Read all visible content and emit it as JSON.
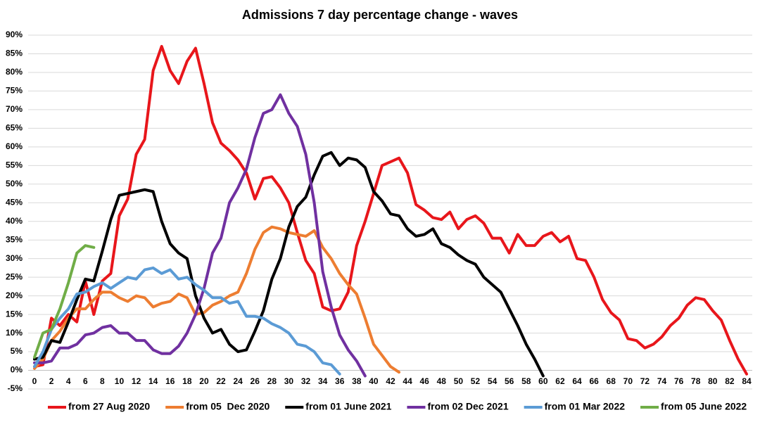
{
  "chart_data": {
    "type": "line",
    "title": "Admissions 7 day percentage change - waves",
    "x": [
      0,
      1,
      2,
      3,
      4,
      5,
      6,
      7,
      8,
      9,
      10,
      11,
      12,
      13,
      14,
      15,
      16,
      17,
      18,
      19,
      20,
      21,
      22,
      23,
      24,
      25,
      26,
      27,
      28,
      29,
      30,
      31,
      32,
      33,
      34,
      35,
      36,
      37,
      38,
      39,
      40,
      41,
      42,
      43,
      44,
      45,
      46,
      47,
      48,
      49,
      50,
      51,
      52,
      53,
      54,
      55,
      56,
      57,
      58,
      59,
      60,
      61,
      62,
      63,
      64,
      65,
      66,
      67,
      68,
      69,
      70,
      71,
      72,
      73,
      74,
      75,
      76,
      77,
      78,
      79,
      80,
      81,
      82,
      83,
      84
    ],
    "xlim": [
      0,
      84
    ],
    "xticks": [
      0,
      2,
      4,
      6,
      8,
      10,
      12,
      14,
      16,
      18,
      20,
      22,
      24,
      26,
      28,
      30,
      32,
      34,
      36,
      38,
      40,
      42,
      44,
      46,
      48,
      50,
      52,
      54,
      56,
      58,
      60,
      62,
      64,
      66,
      68,
      70,
      72,
      74,
      76,
      78,
      80,
      82,
      84
    ],
    "ylim": [
      -5,
      90
    ],
    "yticks": [
      {
        "value": -5,
        "label": "-5%"
      },
      {
        "value": 0,
        "label": "0%"
      },
      {
        "value": 5,
        "label": "5%"
      },
      {
        "value": 10,
        "label": "10%"
      },
      {
        "value": 15,
        "label": "15%"
      },
      {
        "value": 20,
        "label": "20%"
      },
      {
        "value": 25,
        "label": "25%"
      },
      {
        "value": 30,
        "label": "30%"
      },
      {
        "value": 35,
        "label": "35%"
      },
      {
        "value": 40,
        "label": "40%"
      },
      {
        "value": 45,
        "label": "45%"
      },
      {
        "value": 50,
        "label": "50%"
      },
      {
        "value": 55,
        "label": "55%"
      },
      {
        "value": 60,
        "label": "60%"
      },
      {
        "value": 65,
        "label": "65%"
      },
      {
        "value": 70,
        "label": "70%"
      },
      {
        "value": 75,
        "label": "75%"
      },
      {
        "value": 80,
        "label": "80%"
      },
      {
        "value": 85,
        "label": "85%"
      },
      {
        "value": 90,
        "label": "90%"
      }
    ],
    "grid": true,
    "legend": "bottom",
    "series": [
      {
        "name": "from 27 Aug 2020",
        "color": "#e8161b",
        "values": [
          1,
          1.5,
          14,
          12,
          15,
          13,
          24,
          15,
          24,
          26,
          41.5,
          46,
          58,
          62,
          80.5,
          87,
          80.5,
          77,
          83,
          86.5,
          77,
          66.5,
          61,
          59,
          56.5,
          53,
          46,
          51.5,
          52,
          49,
          45,
          37,
          29.5,
          26,
          17,
          16,
          16.5,
          21,
          33.5,
          40,
          47.5,
          55,
          56,
          57,
          53,
          44.5,
          43,
          41,
          40.5,
          42.5,
          38,
          40.5,
          41.5,
          39.5,
          35.5,
          35.5,
          31.5,
          36.5,
          33.5,
          33.5,
          36,
          37,
          34.5,
          36,
          30,
          29.5,
          25,
          19,
          15.5,
          13.5,
          8.5,
          8,
          6,
          7,
          9,
          12,
          14,
          17.5,
          19.5,
          19,
          16,
          13.5,
          8,
          3,
          -1
        ]
      },
      {
        "name": "from 05  Dec 2020",
        "color": "#ed7d31",
        "values": [
          0.5,
          3,
          8,
          10.5,
          14,
          16.5,
          16.5,
          19,
          21,
          21,
          19.5,
          18.5,
          20,
          19.5,
          17,
          18,
          18.5,
          20.5,
          19.5,
          15,
          15.5,
          17.5,
          18.5,
          20,
          21,
          26,
          32.5,
          37,
          38.5,
          38,
          37,
          36.5,
          36,
          37.5,
          33,
          30,
          26,
          23,
          20.5,
          14,
          7,
          4,
          1,
          -0.5,
          null,
          null,
          null,
          null,
          null,
          null,
          null,
          null,
          null,
          null,
          null,
          null,
          null,
          null,
          null,
          null,
          null,
          null,
          null,
          null,
          null,
          null,
          null,
          null,
          null,
          null,
          null,
          null,
          null,
          null,
          null,
          null,
          null,
          null,
          null,
          null,
          null,
          null,
          null,
          null,
          null
        ]
      },
      {
        "name": "from 01 June 2021",
        "color": "#000000",
        "values": [
          3,
          3.5,
          8,
          7.5,
          13,
          19,
          24.5,
          24,
          32,
          40.5,
          47,
          47.5,
          48,
          48.5,
          48,
          40,
          34,
          31.5,
          30,
          20,
          14,
          10,
          11,
          7,
          5,
          5.5,
          10.5,
          16,
          24.5,
          30,
          38.5,
          44,
          46.5,
          52.5,
          57.5,
          58.5,
          55,
          57,
          56.5,
          54.5,
          48,
          45.5,
          42,
          41.5,
          38,
          36,
          36.5,
          38,
          34,
          33,
          31,
          29.5,
          28.5,
          25,
          23,
          21,
          16.5,
          12,
          7,
          3,
          -1.5,
          null,
          null,
          null,
          null,
          null,
          null,
          null,
          null,
          null,
          null,
          null,
          null,
          null,
          null,
          null,
          null,
          null,
          null,
          null,
          null,
          null,
          null,
          null,
          null
        ]
      },
      {
        "name": "from 02 Dec 2021",
        "color": "#7030a0",
        "values": [
          2,
          2,
          2.5,
          6,
          6,
          7,
          9.5,
          10,
          11.5,
          12,
          10,
          10,
          8,
          8,
          5.5,
          4.5,
          4.5,
          6.5,
          10,
          15,
          22,
          31.5,
          35.5,
          45,
          49,
          54,
          62.5,
          69,
          70,
          74,
          69,
          65.5,
          58,
          45,
          26.5,
          17,
          9.5,
          5.5,
          2.5,
          -1.5,
          null,
          null,
          null,
          null,
          null,
          null,
          null,
          null,
          null,
          null,
          null,
          null,
          null,
          null,
          null,
          null,
          null,
          null,
          null,
          null,
          null,
          null,
          null,
          null,
          null,
          null,
          null,
          null,
          null,
          null,
          null,
          null,
          null,
          null,
          null,
          null,
          null,
          null,
          null,
          null,
          null,
          null,
          null,
          null,
          null
        ]
      },
      {
        "name": "from 01 Mar 2022",
        "color": "#5b9bd5",
        "values": [
          1,
          5,
          11,
          14,
          16.5,
          20.5,
          21,
          22.5,
          23.5,
          22,
          23.5,
          25,
          24.5,
          27,
          27.5,
          26,
          27,
          24.5,
          25,
          23,
          21.5,
          19.5,
          19.5,
          18,
          18.5,
          14.5,
          14.5,
          14,
          12.5,
          11.5,
          10,
          7,
          6.5,
          5,
          2,
          1.5,
          -1,
          null,
          null,
          null,
          null,
          null,
          null,
          null,
          null,
          null,
          null,
          null,
          null,
          null,
          null,
          null,
          null,
          null,
          null,
          null,
          null,
          null,
          null,
          null,
          null,
          null,
          null,
          null,
          null,
          null,
          null,
          null,
          null,
          null,
          null,
          null,
          null,
          null,
          null,
          null,
          null,
          null,
          null,
          null,
          null,
          null,
          null,
          null,
          null
        ]
      },
      {
        "name": "from 05 June 2022",
        "color": "#70ad47",
        "values": [
          3.5,
          10,
          11,
          16.5,
          23.5,
          31.5,
          33.5,
          33,
          null,
          null,
          null,
          null,
          null,
          null,
          null,
          null,
          null,
          null,
          null,
          null,
          null,
          null,
          null,
          null,
          null,
          null,
          null,
          null,
          null,
          null,
          null,
          null,
          null,
          null,
          null,
          null,
          null,
          null,
          null,
          null,
          null,
          null,
          null,
          null,
          null,
          null,
          null,
          null,
          null,
          null,
          null,
          null,
          null,
          null,
          null,
          null,
          null,
          null,
          null,
          null,
          null,
          null,
          null,
          null,
          null,
          null,
          null,
          null,
          null,
          null,
          null,
          null,
          null,
          null,
          null,
          null,
          null,
          null,
          null,
          null,
          null,
          null,
          null,
          null,
          null
        ]
      }
    ]
  }
}
